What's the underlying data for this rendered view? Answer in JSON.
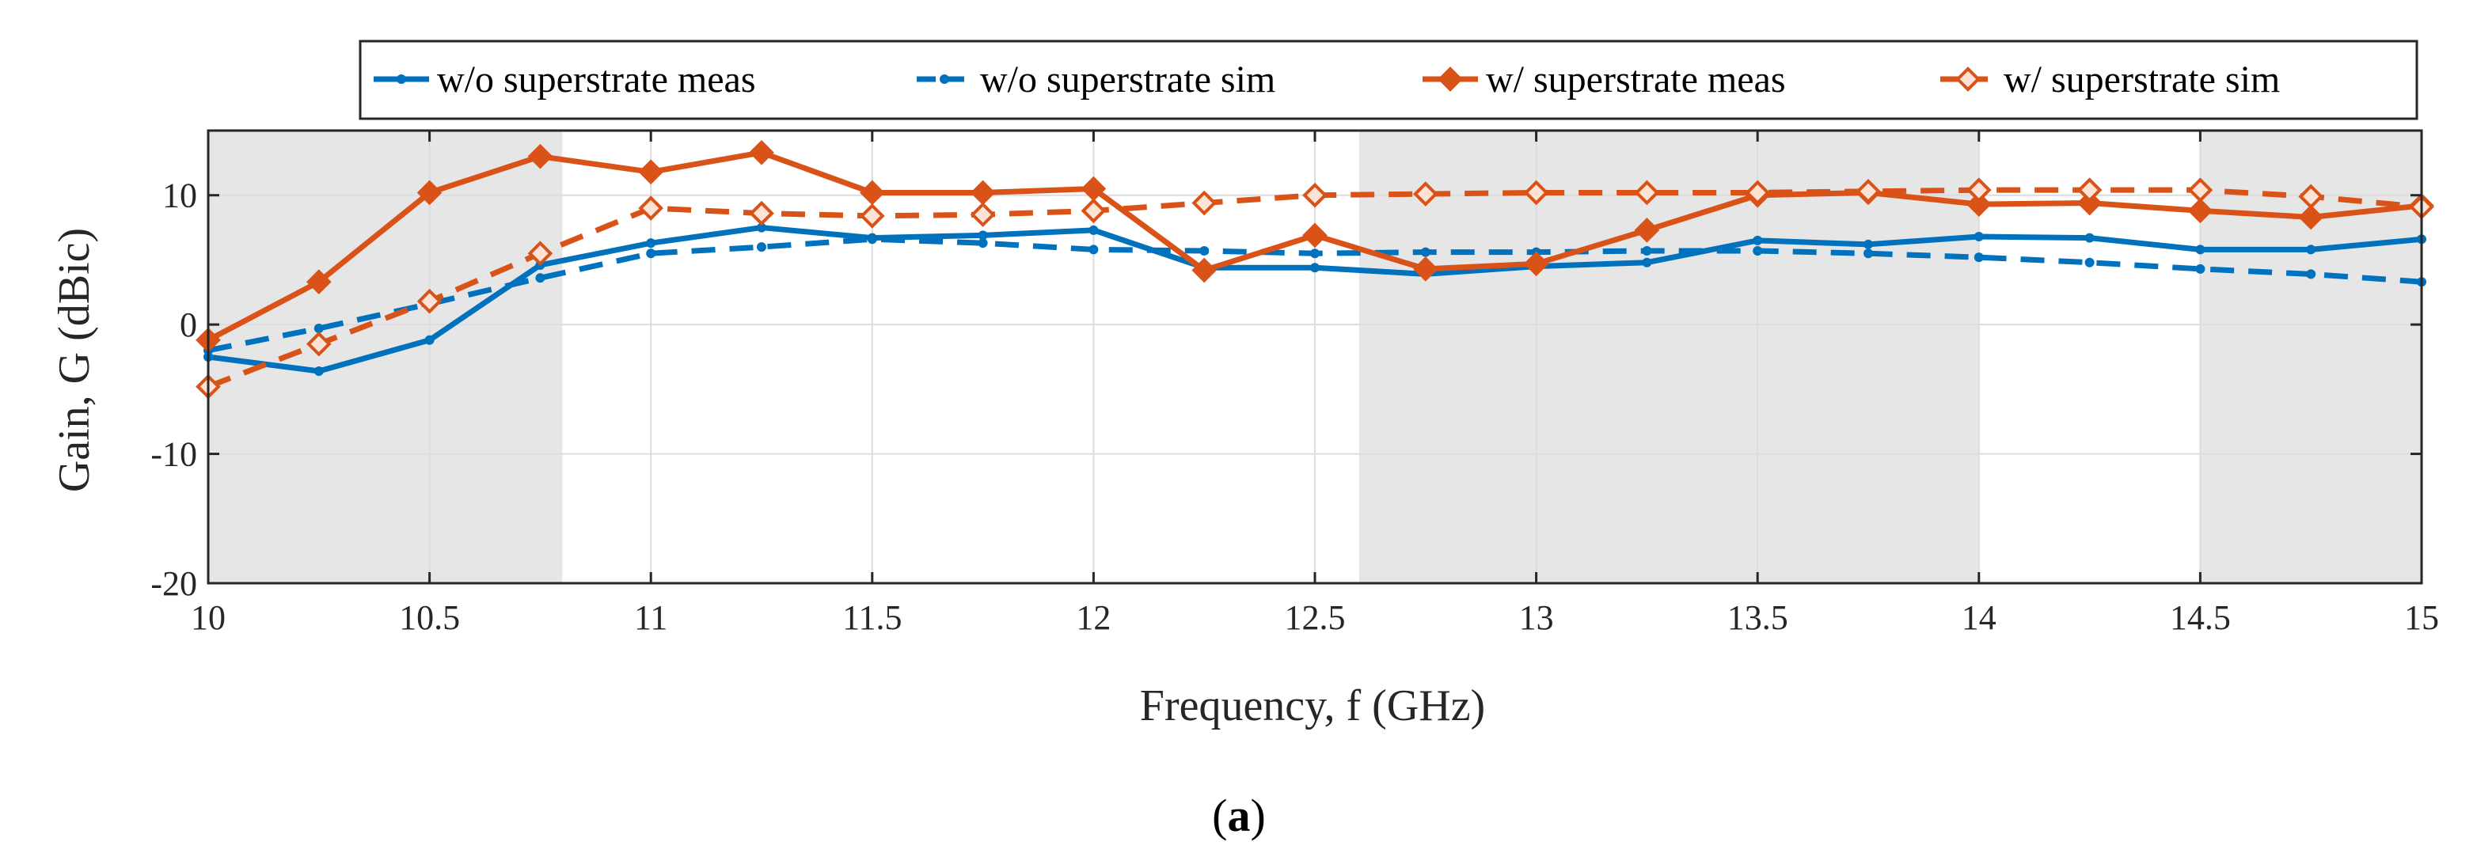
{
  "chart_data": {
    "type": "line",
    "title": "",
    "xlabel": "Frequency, f (GHz)",
    "ylabel": "Gain, G (dBic)",
    "xlim": [
      10,
      15
    ],
    "ylim": [
      -20,
      15
    ],
    "xticks": [
      10,
      10.5,
      11,
      11.5,
      12,
      12.5,
      13,
      13.5,
      14,
      14.5,
      15
    ],
    "yticks": [
      -20,
      -10,
      0,
      10
    ],
    "xtick_labels": [
      "10",
      "10.5",
      "11",
      "11.5",
      "12",
      "12.5",
      "13",
      "13.5",
      "14",
      "14.5",
      "15"
    ],
    "ytick_labels": [
      "-20",
      "-10",
      "0",
      "10"
    ],
    "grid": true,
    "legend_position": "top",
    "shaded_bands": [
      [
        10,
        10.8
      ],
      [
        12.6,
        14
      ],
      [
        14.5,
        15
      ]
    ],
    "x": [
      10,
      10.25,
      10.5,
      10.75,
      11,
      11.25,
      11.5,
      11.75,
      12,
      12.25,
      12.5,
      12.75,
      13,
      13.25,
      13.5,
      13.75,
      14,
      14.25,
      14.5,
      14.75,
      15
    ],
    "series": [
      {
        "name": "w/o superstrate meas",
        "color": "#0072BD",
        "dash": "solid",
        "marker": "dot",
        "values": [
          -2.5,
          -3.6,
          -1.2,
          4.6,
          6.3,
          7.5,
          6.7,
          6.9,
          7.3,
          4.4,
          4.4,
          3.9,
          4.5,
          4.8,
          6.5,
          6.2,
          6.8,
          6.7,
          5.8,
          5.8,
          6.6
        ]
      },
      {
        "name": "w/o superstrate sim",
        "color": "#0072BD",
        "dash": "dashed",
        "marker": "dot",
        "values": [
          -2.0,
          -0.3,
          1.6,
          3.6,
          5.5,
          6.0,
          6.6,
          6.3,
          5.8,
          5.7,
          5.5,
          5.6,
          5.6,
          5.7,
          5.7,
          5.5,
          5.2,
          4.8,
          4.3,
          3.9,
          3.3
        ]
      },
      {
        "name": "w/ superstrate meas",
        "color": "#D95319",
        "dash": "solid",
        "marker": "diamond",
        "values": [
          -1.2,
          3.3,
          10.2,
          13.0,
          11.8,
          13.3,
          10.2,
          10.2,
          10.5,
          4.2,
          6.9,
          4.3,
          4.7,
          7.3,
          10.0,
          10.2,
          9.3,
          9.4,
          8.8,
          8.3,
          9.2
        ]
      },
      {
        "name": "w/ superstrate sim",
        "color": "#D95319",
        "dash": "dashed",
        "marker": "diamond-open",
        "values": [
          -4.8,
          -1.5,
          1.8,
          5.5,
          9.0,
          8.6,
          8.4,
          8.5,
          8.8,
          9.4,
          10.0,
          10.1,
          10.2,
          10.2,
          10.2,
          10.3,
          10.4,
          10.4,
          10.4,
          9.9,
          9.1
        ]
      }
    ],
    "caption": {
      "open": "(",
      "letter": "a",
      "close": ")"
    }
  }
}
